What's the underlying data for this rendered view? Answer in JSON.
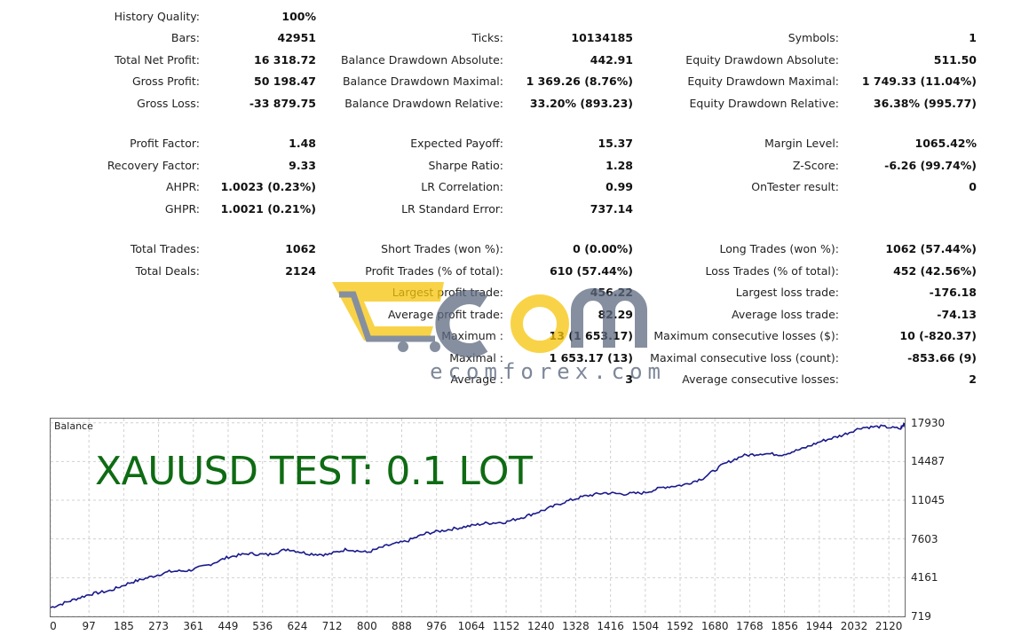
{
  "stats": {
    "history_quality": {
      "label": "History Quality:",
      "value": "100%"
    },
    "bars": {
      "label": "Bars:",
      "value": "42951"
    },
    "ticks": {
      "label": "Ticks:",
      "value": "10134185"
    },
    "symbols": {
      "label": "Symbols:",
      "value": "1"
    },
    "total_net_profit": {
      "label": "Total Net Profit:",
      "value": "16 318.72"
    },
    "balance_dd_abs": {
      "label": "Balance Drawdown Absolute:",
      "value": "442.91"
    },
    "equity_dd_abs": {
      "label": "Equity Drawdown Absolute:",
      "value": "511.50"
    },
    "gross_profit": {
      "label": "Gross Profit:",
      "value": "50 198.47"
    },
    "balance_dd_max": {
      "label": "Balance Drawdown Maximal:",
      "value": "1 369.26 (8.76%)"
    },
    "equity_dd_max": {
      "label": "Equity Drawdown Maximal:",
      "value": "1 749.33 (11.04%)"
    },
    "gross_loss": {
      "label": "Gross Loss:",
      "value": "-33 879.75"
    },
    "balance_dd_rel": {
      "label": "Balance Drawdown Relative:",
      "value": "33.20% (893.23)"
    },
    "equity_dd_rel": {
      "label": "Equity Drawdown Relative:",
      "value": "36.38% (995.77)"
    },
    "profit_factor": {
      "label": "Profit Factor:",
      "value": "1.48"
    },
    "expected_payoff": {
      "label": "Expected Payoff:",
      "value": "15.37"
    },
    "margin_level": {
      "label": "Margin Level:",
      "value": "1065.42%"
    },
    "recovery_factor": {
      "label": "Recovery Factor:",
      "value": "9.33"
    },
    "sharpe_ratio": {
      "label": "Sharpe Ratio:",
      "value": "1.28"
    },
    "z_score": {
      "label": "Z-Score:",
      "value": "-6.26 (99.74%)"
    },
    "ahpr": {
      "label": "AHPR:",
      "value": "1.0023 (0.23%)"
    },
    "lr_correlation": {
      "label": "LR Correlation:",
      "value": "0.99"
    },
    "ontester": {
      "label": "OnTester result:",
      "value": "0"
    },
    "ghpr": {
      "label": "GHPR:",
      "value": "1.0021 (0.21%)"
    },
    "lr_std_error": {
      "label": "LR Standard Error:",
      "value": "737.14"
    },
    "total_trades": {
      "label": "Total Trades:",
      "value": "1062"
    },
    "short_trades": {
      "label": "Short Trades (won %):",
      "value": "0 (0.00%)"
    },
    "long_trades": {
      "label": "Long Trades (won %):",
      "value": "1062 (57.44%)"
    },
    "total_deals": {
      "label": "Total Deals:",
      "value": "2124"
    },
    "profit_trades": {
      "label": "Profit Trades (% of total):",
      "value": "610 (57.44%)"
    },
    "loss_trades": {
      "label": "Loss Trades (% of total):",
      "value": "452 (42.56%)"
    },
    "largest_profit": {
      "label": "Largest profit trade:",
      "value": "456.22"
    },
    "largest_loss": {
      "label": "Largest loss trade:",
      "value": "-176.18"
    },
    "avg_profit": {
      "label": "Average profit trade:",
      "value": "82.29"
    },
    "avg_loss": {
      "label": "Average loss trade:",
      "value": "-74.13"
    },
    "maximum": {
      "label": "Maximum :",
      "value": "13 (1 653.17)"
    },
    "max_consec_losses": {
      "label": "Maximum consecutive losses ($):",
      "value": "10 (-820.37)"
    },
    "maximal": {
      "label": "Maximal :",
      "value": "1 653.17 (13)"
    },
    "maximal_consec_loss": {
      "label": "Maximal consecutive loss (count):",
      "value": "-853.66 (9)"
    },
    "average": {
      "label": "Average :",
      "value": "3"
    },
    "avg_consec_losses": {
      "label": "Average consecutive losses:",
      "value": "2"
    }
  },
  "watermark": {
    "brand": "ecomforex.com",
    "colors": {
      "yellow": "#f7c50a",
      "slate": "#5d6a80"
    }
  },
  "chart_data": {
    "type": "line",
    "panel_label": "Balance",
    "overlay_title": "XAUUSD TEST: 0.1 LOT",
    "line_color": "#1a1a8c",
    "grid": true,
    "xlim": [
      0,
      2160
    ],
    "ylim": [
      719,
      18300
    ],
    "y_ticks": [
      17930,
      14487,
      11045,
      7603,
      4161,
      719
    ],
    "x_ticks": [
      0,
      97,
      185,
      273,
      361,
      449,
      536,
      624,
      712,
      800,
      888,
      976,
      1064,
      1152,
      1240,
      1328,
      1416,
      1504,
      1592,
      1680,
      1768,
      1856,
      1944,
      2032,
      2120
    ],
    "x": [
      0,
      50,
      100,
      150,
      200,
      250,
      300,
      350,
      400,
      450,
      500,
      550,
      600,
      650,
      700,
      750,
      800,
      850,
      900,
      950,
      1000,
      1050,
      1100,
      1150,
      1200,
      1250,
      1300,
      1350,
      1400,
      1450,
      1500,
      1550,
      1600,
      1650,
      1700,
      1750,
      1800,
      1850,
      1900,
      1950,
      2000,
      2050,
      2100,
      2150,
      2160
    ],
    "y": [
      1500,
      2100,
      2700,
      3000,
      3700,
      4200,
      4700,
      4800,
      5300,
      6000,
      6300,
      6200,
      6700,
      6300,
      6200,
      6700,
      6400,
      7000,
      7400,
      8100,
      8400,
      8700,
      9000,
      9100,
      9600,
      10200,
      10900,
      11400,
      11700,
      11600,
      11700,
      12200,
      12400,
      13000,
      14200,
      15000,
      15200,
      15100,
      15600,
      16300,
      16800,
      17500,
      17600,
      17400,
      17900
    ]
  }
}
